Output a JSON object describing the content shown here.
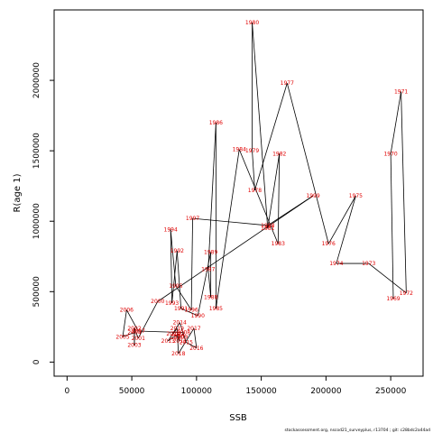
{
  "chart_data": {
    "type": "line",
    "xlabel": "SSB",
    "ylabel": "R(age 1)",
    "xlim": [
      -10000,
      275000
    ],
    "ylim": [
      -100000,
      2500000
    ],
    "x_ticks": [
      0,
      50000,
      100000,
      150000,
      200000,
      250000
    ],
    "y_ticks": [
      0,
      500000,
      1000000,
      1500000,
      2000000
    ],
    "grid": false,
    "legend": "none",
    "line_color": "#000000",
    "label_color": "#e00000",
    "series": [
      {
        "points": [
          {
            "year": "1969",
            "x": 252000,
            "y": 450000
          },
          {
            "year": "1970",
            "x": 250000,
            "y": 1480000
          },
          {
            "year": "1971",
            "x": 258000,
            "y": 1920000
          },
          {
            "year": "1972",
            "x": 262000,
            "y": 490000
          },
          {
            "year": "1973",
            "x": 233000,
            "y": 700000
          },
          {
            "year": "1974",
            "x": 208000,
            "y": 700000
          },
          {
            "year": "1975",
            "x": 223000,
            "y": 1180000
          },
          {
            "year": "1976",
            "x": 202000,
            "y": 840000
          },
          {
            "year": "1977",
            "x": 170000,
            "y": 1980000
          },
          {
            "year": "1978",
            "x": 145000,
            "y": 1220000
          },
          {
            "year": "1979",
            "x": 143000,
            "y": 1500000
          },
          {
            "year": "1980",
            "x": 143000,
            "y": 2410000
          },
          {
            "year": "1981",
            "x": 155000,
            "y": 950000
          },
          {
            "year": "1982",
            "x": 164000,
            "y": 1480000
          },
          {
            "year": "1983",
            "x": 163000,
            "y": 840000
          },
          {
            "year": "1984",
            "x": 133000,
            "y": 1510000
          },
          {
            "year": "1985",
            "x": 115000,
            "y": 380000
          },
          {
            "year": "1986",
            "x": 115000,
            "y": 1700000
          },
          {
            "year": "1987",
            "x": 109000,
            "y": 660000
          },
          {
            "year": "1988",
            "x": 111000,
            "y": 460000
          },
          {
            "year": "1989",
            "x": 111000,
            "y": 780000
          },
          {
            "year": "1990",
            "x": 101000,
            "y": 330000
          },
          {
            "year": "1991",
            "x": 88000,
            "y": 380000
          },
          {
            "year": "1992",
            "x": 85000,
            "y": 790000
          },
          {
            "year": "1993",
            "x": 81000,
            "y": 420000
          },
          {
            "year": "1994",
            "x": 80000,
            "y": 940000
          },
          {
            "year": "1995",
            "x": 84000,
            "y": 540000
          },
          {
            "year": "1996",
            "x": 96000,
            "y": 370000
          },
          {
            "year": "1997",
            "x": 97000,
            "y": 1020000
          },
          {
            "year": "1998",
            "x": 155000,
            "y": 970000
          },
          {
            "year": "1999",
            "x": 190000,
            "y": 1180000
          },
          {
            "year": "2000",
            "x": 70000,
            "y": 430000
          },
          {
            "year": "2001",
            "x": 55000,
            "y": 170000
          },
          {
            "year": "2002",
            "x": 52000,
            "y": 240000
          },
          {
            "year": "2003",
            "x": 52000,
            "y": 120000
          },
          {
            "year": "2004",
            "x": 52000,
            "y": 210000
          },
          {
            "year": "2005",
            "x": 43000,
            "y": 180000
          },
          {
            "year": "2006",
            "x": 46000,
            "y": 370000
          },
          {
            "year": "2007",
            "x": 55000,
            "y": 220000
          },
          {
            "year": "2008",
            "x": 90000,
            "y": 210000
          },
          {
            "year": "2009",
            "x": 88000,
            "y": 180000
          },
          {
            "year": "2010",
            "x": 85000,
            "y": 180000
          },
          {
            "year": "2011",
            "x": 87000,
            "y": 150000
          },
          {
            "year": "2012",
            "x": 86000,
            "y": 200000
          },
          {
            "year": "2013",
            "x": 78000,
            "y": 150000
          },
          {
            "year": "2014",
            "x": 87000,
            "y": 280000
          },
          {
            "year": "2015",
            "x": 92000,
            "y": 140000
          },
          {
            "year": "2016",
            "x": 100000,
            "y": 100000
          },
          {
            "year": "2017",
            "x": 98000,
            "y": 240000
          },
          {
            "year": "2018",
            "x": 86000,
            "y": 60000
          },
          {
            "year": "2019",
            "x": 85000,
            "y": 240000
          },
          {
            "year": "2020",
            "x": 82000,
            "y": 200000
          }
        ]
      }
    ]
  },
  "footer_text": "stockassessment.org, nscod21_surveyplus, r13704 ; git: c28bdc2a44ad"
}
